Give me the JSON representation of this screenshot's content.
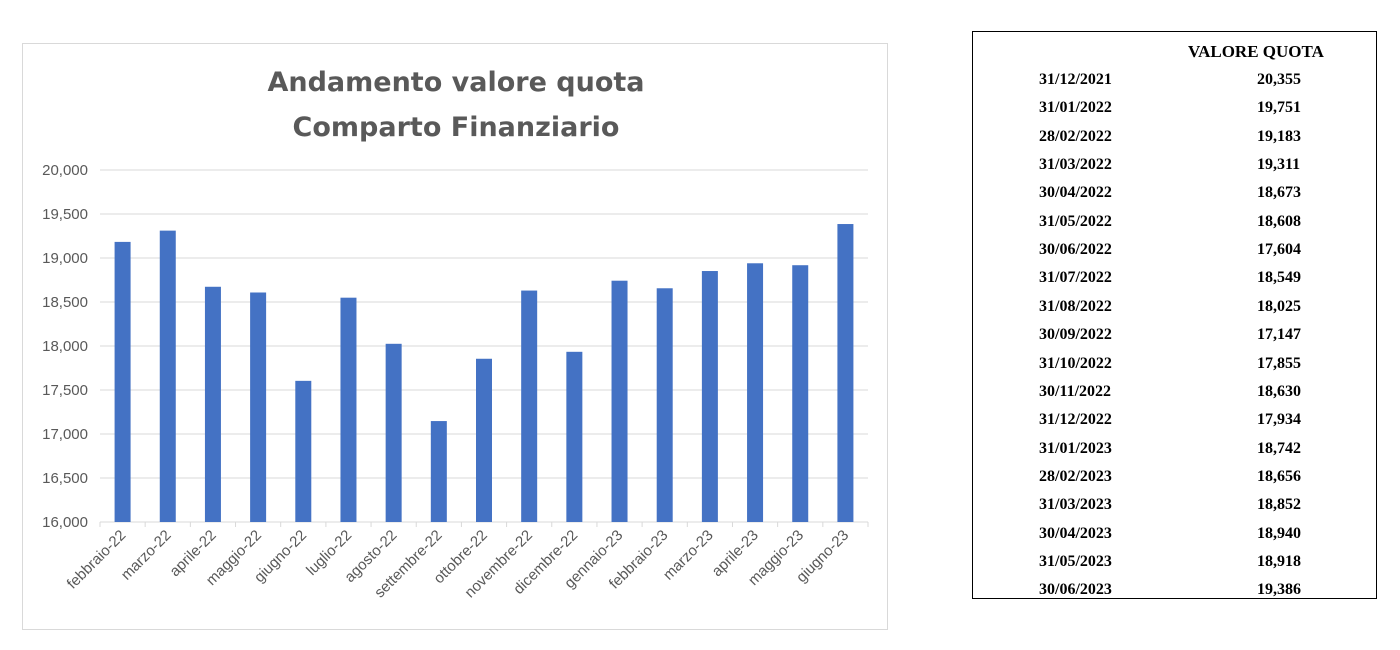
{
  "chart_data": {
    "type": "bar",
    "title_lines": [
      "Andamento valore quota",
      "Comparto Finanziario"
    ],
    "categories": [
      "febbraio-22",
      "marzo-22",
      "aprile-22",
      "maggio-22",
      "giugno-22",
      "luglio-22",
      "agosto-22",
      "settembre-22",
      "ottobre-22",
      "novembre-22",
      "dicembre-22",
      "gennaio-23",
      "febbraio-23",
      "marzo-23",
      "aprile-23",
      "maggio-23",
      "giugno-23"
    ],
    "values": [
      19.183,
      19.311,
      18.673,
      18.608,
      17.604,
      18.549,
      18.025,
      17.147,
      17.855,
      18.63,
      17.934,
      18.742,
      18.656,
      18.852,
      18.94,
      18.918,
      19.386
    ],
    "ylim": [
      16,
      20
    ],
    "yticks": [
      16,
      16.5,
      17,
      17.5,
      18,
      18.5,
      19,
      19.5,
      20
    ],
    "ytick_labels": [
      "16,000",
      "16,500",
      "17,000",
      "17,500",
      "18,000",
      "18,500",
      "19,000",
      "19,500",
      "20,000"
    ],
    "xlabel": "",
    "ylabel": "",
    "grid": true,
    "bar_color": "#4472c4"
  },
  "table": {
    "header": "VALORE QUOTA",
    "rows": [
      {
        "date": "31/12/2021",
        "value": "20,355"
      },
      {
        "date": "31/01/2022",
        "value": "19,751"
      },
      {
        "date": "28/02/2022",
        "value": "19,183"
      },
      {
        "date": "31/03/2022",
        "value": "19,311"
      },
      {
        "date": "30/04/2022",
        "value": "18,673"
      },
      {
        "date": "31/05/2022",
        "value": "18,608"
      },
      {
        "date": "30/06/2022",
        "value": "17,604"
      },
      {
        "date": "31/07/2022",
        "value": "18,549"
      },
      {
        "date": "31/08/2022",
        "value": "18,025"
      },
      {
        "date": "30/09/2022",
        "value": "17,147"
      },
      {
        "date": "31/10/2022",
        "value": "17,855"
      },
      {
        "date": "30/11/2022",
        "value": "18,630"
      },
      {
        "date": "31/12/2022",
        "value": "17,934"
      },
      {
        "date": "31/01/2023",
        "value": "18,742"
      },
      {
        "date": "28/02/2023",
        "value": "18,656"
      },
      {
        "date": "31/03/2023",
        "value": "18,852"
      },
      {
        "date": "30/04/2023",
        "value": "18,940"
      },
      {
        "date": "31/05/2023",
        "value": "18,918"
      },
      {
        "date": "30/06/2023",
        "value": "19,386"
      }
    ]
  }
}
